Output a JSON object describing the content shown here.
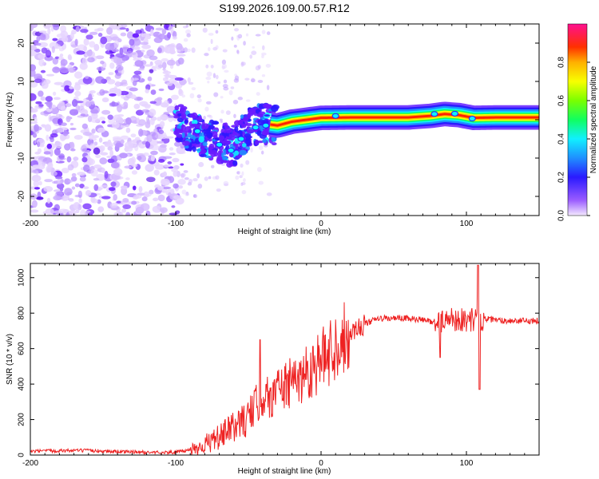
{
  "title": "S199.2026.109.00.57.R12",
  "colors": {
    "snr_line": "#ee2222",
    "ridge": "#ff2200",
    "axis": "#000000"
  },
  "chart_data": [
    {
      "type": "heatmap",
      "name": "spectrogram",
      "title": "S199.2026.109.00.57.R12",
      "xlabel": "Height of straight line (km)",
      "ylabel": "Frequency (Hz)",
      "xlim": [
        -200,
        150
      ],
      "ylim": [
        -25,
        25
      ],
      "xticks": [
        -200,
        -100,
        0,
        100
      ],
      "xtick_labels": [
        "-200",
        "-100",
        "0",
        "100"
      ],
      "yticks": [
        -20,
        -10,
        0,
        10,
        20
      ],
      "ytick_labels": [
        "-20",
        "-10",
        "0",
        "10",
        "20"
      ],
      "ridge": {
        "x": [
          -100,
          -90,
          -80,
          -70,
          -60,
          -50,
          -40,
          -30,
          -20,
          -10,
          0,
          20,
          40,
          60,
          75,
          85,
          95,
          105,
          120,
          150
        ],
        "y": [
          0,
          -3,
          -5,
          -6,
          -7,
          -2,
          -1,
          -1.5,
          -0.5,
          0,
          0.5,
          0.6,
          0.6,
          0.6,
          1,
          1.5,
          1.2,
          0.5,
          0.6,
          0.6
        ]
      },
      "colorbar": {
        "label": "Normalized spectral amplitude",
        "range": [
          0,
          1
        ],
        "ticks": [
          0,
          0.2,
          0.4,
          0.6,
          0.8
        ],
        "tick_labels": [
          "0.0",
          "0.2",
          "0.4",
          "0.6",
          "0.8"
        ]
      }
    },
    {
      "type": "line",
      "name": "snr",
      "xlabel": "Height of straight line (km)",
      "ylabel": "SNR (10 * v/v)",
      "xlim": [
        -200,
        150
      ],
      "ylim": [
        0,
        1080
      ],
      "xticks": [
        -200,
        -100,
        0,
        100
      ],
      "xtick_labels": [
        "-200",
        "-100",
        "0",
        "100"
      ],
      "yticks": [
        0,
        200,
        400,
        600,
        800,
        1000
      ],
      "ytick_labels": [
        "0",
        "200",
        "400",
        "600",
        "800",
        "1000"
      ],
      "series": [
        {
          "name": "SNR",
          "x": [
            -200,
            -180,
            -160,
            -140,
            -120,
            -100,
            -90,
            -80,
            -70,
            -60,
            -50,
            -45,
            -40,
            -35,
            -30,
            -20,
            -10,
            0,
            10,
            20,
            30,
            40,
            60,
            80,
            90,
            100,
            110,
            120,
            140,
            150
          ],
          "values": [
            20,
            25,
            25,
            20,
            15,
            15,
            30,
            60,
            100,
            160,
            210,
            280,
            330,
            320,
            380,
            400,
            470,
            530,
            620,
            690,
            740,
            770,
            770,
            750,
            770,
            760,
            770,
            760,
            755,
            760
          ]
        }
      ],
      "annotations_spikes": [
        {
          "x": -42,
          "value": 650
        },
        {
          "x": 82,
          "value": 550
        },
        {
          "x": 108,
          "value": 1070
        },
        {
          "x": 109,
          "value": 370
        }
      ]
    }
  ]
}
